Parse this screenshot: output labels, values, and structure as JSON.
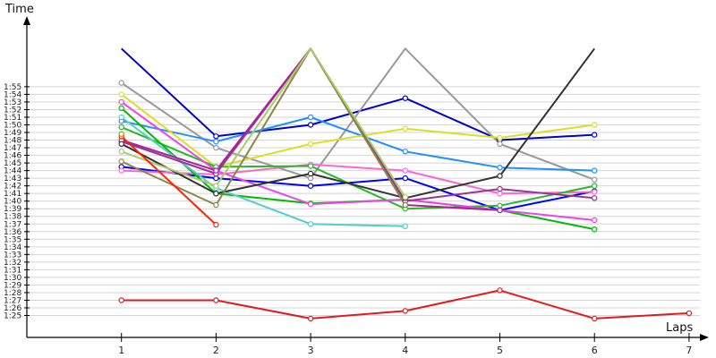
{
  "chart_data": {
    "type": "line",
    "xlabel": "Laps",
    "ylabel": "Time",
    "x_ticks": [
      "1",
      "2",
      "3",
      "4",
      "5",
      "6",
      "7"
    ],
    "y_ticks": [
      "1:25",
      "1:26",
      "1:27",
      "1:28",
      "1:29",
      "1:30",
      "1:31",
      "1:32",
      "1:33",
      "1:34",
      "1:35",
      "1:36",
      "1:37",
      "1:38",
      "1:39",
      "1:40",
      "1:41",
      "1:42",
      "1:43",
      "1:44",
      "1:45",
      "1:46",
      "1:47",
      "1:48",
      "1:49",
      "1:50",
      "1:51",
      "1:52",
      "1:53",
      "1:54",
      "1:55"
    ],
    "ylim_seconds": [
      84,
      119
    ],
    "grid": true,
    "legend": "none",
    "series": [
      {
        "color": "#e31a1c",
        "points": [
          [
            1,
            87.0
          ],
          [
            2,
            87.0
          ],
          [
            3,
            84.6
          ],
          [
            4,
            85.6
          ],
          [
            5,
            88.3
          ],
          [
            6,
            84.6
          ],
          [
            7,
            85.3
          ]
        ]
      },
      {
        "color": "#0000c8",
        "points": [
          [
            1,
            120.0
          ],
          [
            2,
            108.5
          ],
          [
            3,
            110.0
          ],
          [
            4,
            113.5
          ],
          [
            5,
            108.0
          ],
          [
            6,
            108.7
          ]
        ]
      },
      {
        "color": "#999999",
        "points": [
          [
            1,
            115.5
          ],
          [
            2,
            107.0
          ],
          [
            3,
            103.0
          ],
          [
            4,
            120.0
          ],
          [
            5,
            107.5
          ],
          [
            6,
            102.8
          ]
        ]
      },
      {
        "color": "#1e90ff",
        "points": [
          [
            1,
            110.5
          ],
          [
            2,
            107.8
          ],
          [
            3,
            111.0
          ],
          [
            4,
            106.5
          ],
          [
            5,
            104.4
          ],
          [
            6,
            104.0
          ]
        ]
      },
      {
        "color": "#dddd22",
        "points": [
          [
            1,
            114.0
          ],
          [
            2,
            104.5
          ],
          [
            3,
            107.5
          ],
          [
            4,
            109.5
          ],
          [
            5,
            108.3
          ],
          [
            6,
            110.0
          ]
        ]
      },
      {
        "color": "#0000ff",
        "points": [
          [
            1,
            104.5
          ],
          [
            2,
            103.0
          ],
          [
            3,
            102.0
          ],
          [
            4,
            103.0
          ],
          [
            5,
            98.8
          ],
          [
            6,
            101.3
          ]
        ]
      },
      {
        "color": "#ff66cc",
        "points": [
          [
            1,
            104.0
          ],
          [
            2,
            103.5
          ],
          [
            3,
            104.8
          ],
          [
            4,
            104.0
          ],
          [
            5,
            101.0
          ],
          [
            6,
            101.2
          ]
        ]
      },
      {
        "color": "#22bb22",
        "points": [
          [
            1,
            109.7
          ],
          [
            2,
            104.5
          ],
          [
            3,
            104.6
          ],
          [
            4,
            99.0
          ],
          [
            5,
            99.4
          ],
          [
            6,
            102.0
          ]
        ]
      },
      {
        "color": "#00bb00",
        "points": [
          [
            1,
            112.2
          ],
          [
            2,
            101.0
          ],
          [
            3,
            99.7
          ],
          [
            4,
            100.2
          ],
          [
            5,
            98.8
          ],
          [
            6,
            96.3
          ]
        ]
      },
      {
        "color": "#55cccc",
        "points": [
          [
            1,
            111.0
          ],
          [
            2,
            101.7
          ],
          [
            3,
            97.0
          ],
          [
            4,
            96.7
          ]
        ]
      },
      {
        "color": "#ee44ee",
        "points": [
          [
            1,
            113.0
          ],
          [
            2,
            104.0
          ],
          [
            3,
            99.6
          ],
          [
            4,
            100.2
          ],
          [
            5,
            98.8
          ],
          [
            6,
            97.5
          ]
        ]
      },
      {
        "color": "#993399",
        "points": [
          [
            1,
            107.8
          ],
          [
            2,
            103.6
          ],
          [
            3,
            120.0
          ],
          [
            4,
            100.0
          ],
          [
            5,
            101.6
          ],
          [
            6,
            100.4
          ]
        ]
      },
      {
        "color": "#aa2299",
        "points": [
          [
            1,
            108.0
          ],
          [
            2,
            104.0
          ],
          [
            3,
            120.0
          ],
          [
            4,
            99.5
          ],
          [
            5,
            98.8
          ]
        ]
      },
      {
        "color": "#333333",
        "points": [
          [
            1,
            107.5
          ],
          [
            2,
            101.0
          ],
          [
            3,
            103.6
          ],
          [
            4,
            100.4
          ],
          [
            5,
            103.3
          ],
          [
            6,
            120.0
          ]
        ]
      },
      {
        "color": "#888844",
        "points": [
          [
            1,
            105.2
          ],
          [
            2,
            99.5
          ],
          [
            3,
            120.0
          ],
          [
            4,
            99.5
          ]
        ]
      },
      {
        "color": "#aacc66",
        "points": [
          [
            1,
            106.5
          ],
          [
            2,
            102.0
          ],
          [
            3,
            120.0
          ],
          [
            4,
            100.5
          ]
        ]
      },
      {
        "color": "#ff2200",
        "points": [
          [
            1,
            108.5
          ],
          [
            2,
            96.9
          ]
        ]
      },
      {
        "color": "#cc8800",
        "points": [
          [
            1,
            108.8
          ]
        ]
      }
    ]
  }
}
